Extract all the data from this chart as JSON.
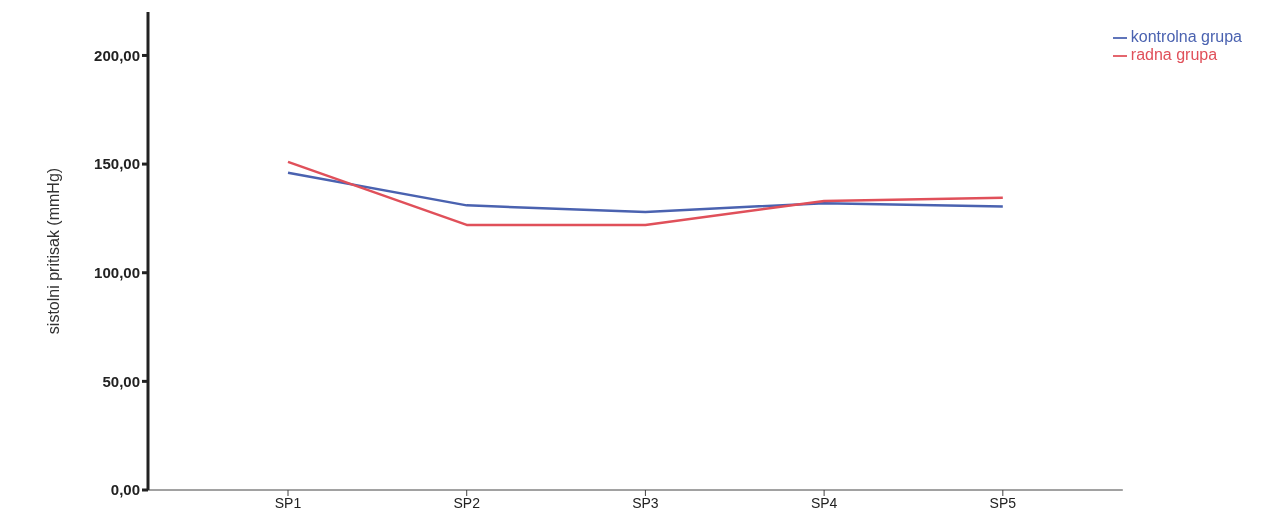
{
  "chart_data": {
    "type": "line",
    "ylabel": "sistolni pritisak (mmHg)",
    "categories": [
      "SP1",
      "SP2",
      "SP3",
      "SP4",
      "SP5"
    ],
    "series": [
      {
        "name": "kontrolna grupa",
        "color": "#4a62b0",
        "values": [
          146,
          131,
          128,
          132,
          130.5
        ]
      },
      {
        "name": "radna grupa",
        "color": "#e0505a",
        "values": [
          151,
          122,
          122,
          133,
          134.5
        ]
      }
    ],
    "ylim": [
      0,
      220
    ],
    "yticks": [
      {
        "value": 0,
        "label": "0,00"
      },
      {
        "value": 50,
        "label": "50,00"
      },
      {
        "value": 100,
        "label": "100,00"
      },
      {
        "value": 150,
        "label": "150,00"
      },
      {
        "value": 200,
        "label": "200,00"
      }
    ],
    "grid": false,
    "legend": "top right",
    "marker": "none",
    "line_style": "solid"
  }
}
